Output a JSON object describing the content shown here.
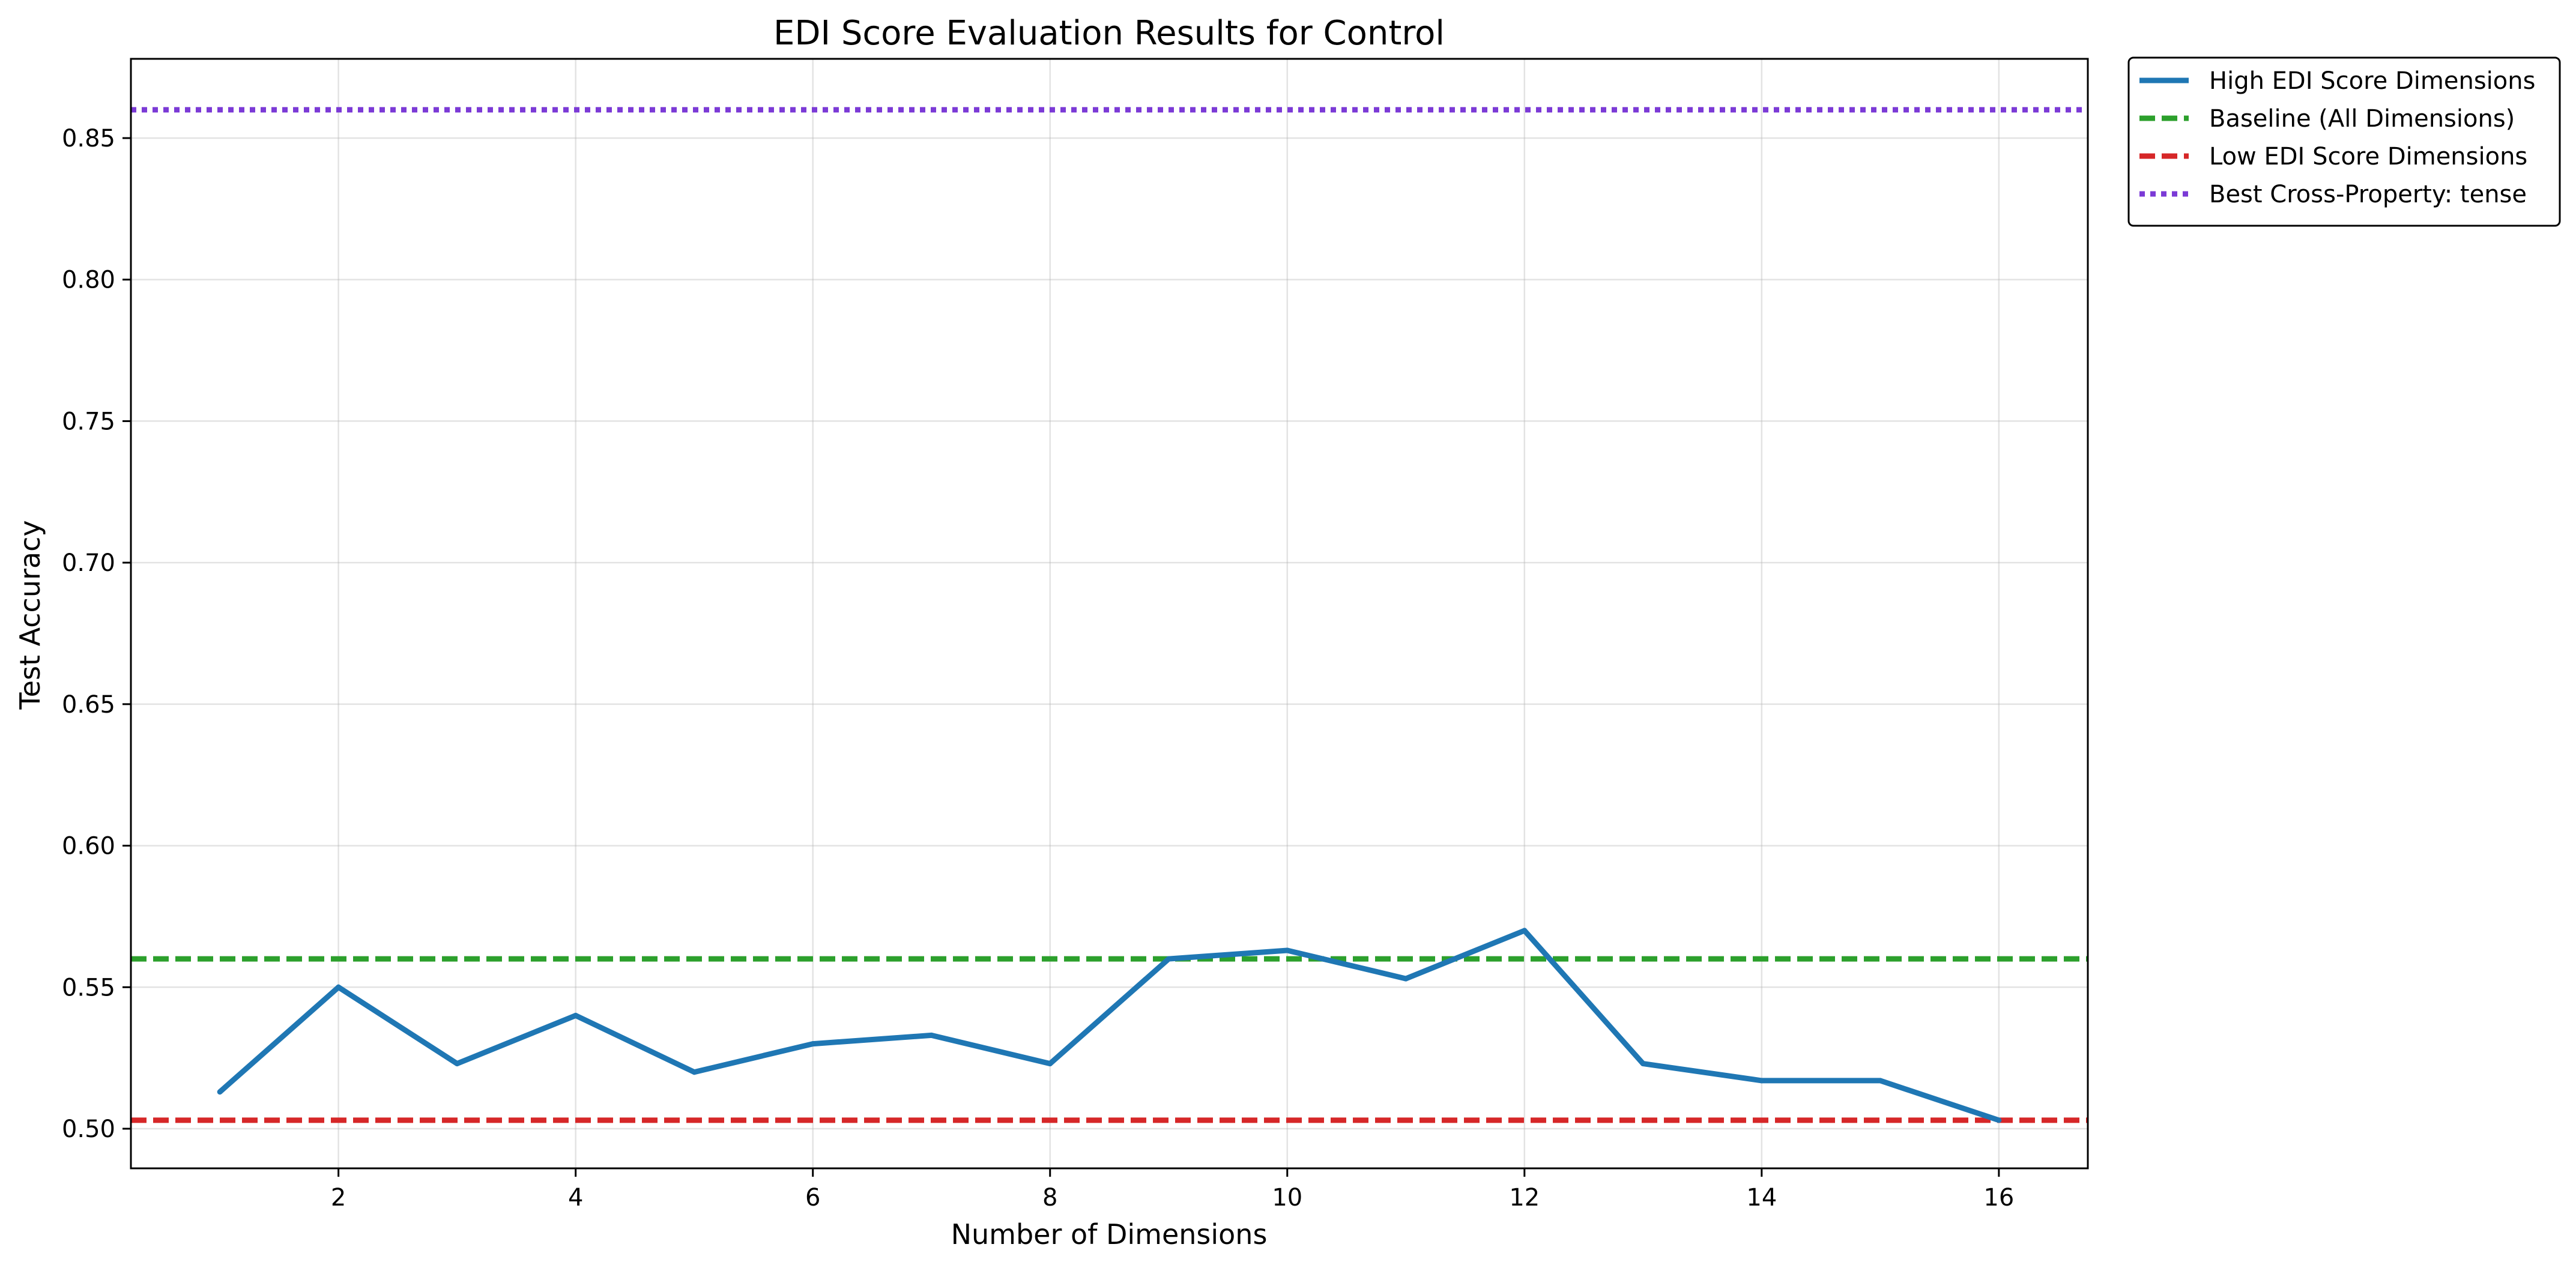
{
  "chart_data": {
    "type": "line",
    "title": "EDI Score Evaluation Results for Control",
    "xlabel": "Number of Dimensions",
    "ylabel": "Test Accuracy",
    "xlim": [
      0.25,
      16.75
    ],
    "ylim": [
      0.486,
      0.878
    ],
    "xticks": [
      2,
      4,
      6,
      8,
      10,
      12,
      14,
      16
    ],
    "yticks": [
      0.5,
      0.55,
      0.6,
      0.65,
      0.7,
      0.75,
      0.8,
      0.85
    ],
    "xtick_labels": [
      "2",
      "4",
      "6",
      "8",
      "10",
      "12",
      "14",
      "16"
    ],
    "ytick_labels": [
      "0.50",
      "0.55",
      "0.60",
      "0.65",
      "0.70",
      "0.75",
      "0.80",
      "0.85"
    ],
    "grid": true,
    "legend_position": "outside top-right",
    "series": [
      {
        "name": "High EDI Score Dimensions",
        "color": "#1f77b4",
        "style": "solid",
        "x": [
          1,
          2,
          3,
          4,
          5,
          6,
          7,
          8,
          9,
          10,
          11,
          12,
          13,
          14,
          15,
          16
        ],
        "y": [
          0.513,
          0.55,
          0.523,
          0.54,
          0.52,
          0.53,
          0.533,
          0.523,
          0.56,
          0.563,
          0.553,
          0.57,
          0.523,
          0.517,
          0.517,
          0.503
        ]
      }
    ],
    "reference_lines": [
      {
        "name": "Baseline (All Dimensions)",
        "color": "#2ca02c",
        "style": "dashed",
        "y": 0.56
      },
      {
        "name": "Low EDI Score Dimensions",
        "color": "#d62728",
        "style": "dashed",
        "y": 0.503
      },
      {
        "name": "Best Cross-Property: tense",
        "color": "#7b3ad6",
        "style": "dotted",
        "y": 0.86
      }
    ],
    "legend": [
      {
        "label": "High EDI Score Dimensions",
        "color": "#1f77b4",
        "style": "solid"
      },
      {
        "label": "Baseline (All Dimensions)",
        "color": "#2ca02c",
        "style": "dashed"
      },
      {
        "label": "Low EDI Score Dimensions",
        "color": "#d62728",
        "style": "dashed"
      },
      {
        "label": "Best Cross-Property: tense",
        "color": "#7b3ad6",
        "style": "dotted"
      }
    ]
  }
}
